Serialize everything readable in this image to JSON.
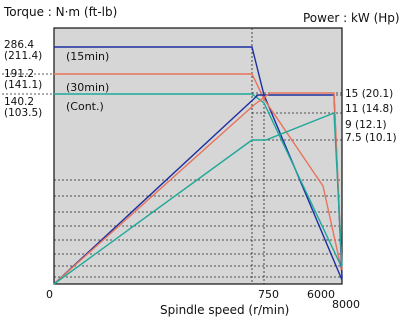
{
  "chart_data": {
    "type": "line",
    "left_axis_title": "Torque : N·m (ft-lb)",
    "right_axis_title": "Power : kW (Hp)",
    "xlabel": "Spindle speed (r/min)",
    "x_ticks": [
      "0",
      "750",
      "6000",
      "8000"
    ],
    "left_ticks": [
      {
        "value": 286.4,
        "alt": "(211.4)"
      },
      {
        "value": 191.2,
        "alt": "(141.1)"
      },
      {
        "value": 140.2,
        "alt": "(103.5)"
      }
    ],
    "right_ticks": [
      {
        "value": 15,
        "alt": "(20.1)"
      },
      {
        "value": 11,
        "alt": "(14.8)"
      },
      {
        "value": 9,
        "alt": "(12.1)"
      },
      {
        "value": 7.5,
        "alt": "(10.1)"
      }
    ],
    "series": [
      {
        "name": "(15min)",
        "color": "#1c2fa0",
        "torque_level": 286.4,
        "power_rating": 15
      },
      {
        "name": "(30min)",
        "color": "#e8735c",
        "torque_level": 191.2,
        "power_rating": 11
      },
      {
        "name": "(Cont.)",
        "color": "#1fa89a",
        "torque_level": 140.2,
        "power_rating": 7.5
      }
    ],
    "power_peak_kw": 9
  }
}
